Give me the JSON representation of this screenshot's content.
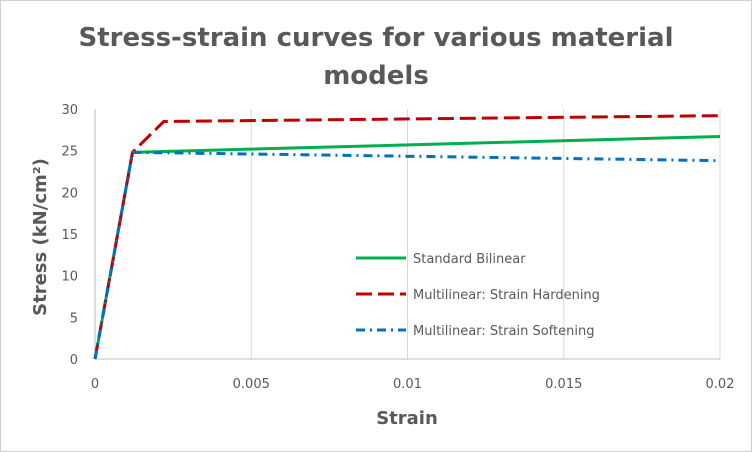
{
  "chart_data": {
    "type": "line",
    "title": "Stress-strain curves for various material models",
    "title_lines": [
      "Stress-strain curves for various material",
      "models"
    ],
    "xlabel": "Strain",
    "ylabel": "Stress (kN/cm²)",
    "xlim": [
      0,
      0.02
    ],
    "ylim": [
      0,
      30
    ],
    "xticks": [
      0,
      0.005,
      0.01,
      0.015,
      0.02
    ],
    "xtick_labels": [
      "0",
      "0.005",
      "0.01",
      "0.015",
      "0.02"
    ],
    "yticks": [
      0,
      5,
      10,
      15,
      20,
      25,
      30
    ],
    "ytick_labels": [
      "0",
      "5",
      "10",
      "15",
      "20",
      "25",
      "30"
    ],
    "grid": "vertical",
    "legend": "center-right",
    "series": [
      {
        "name": "Standard Bilinear",
        "color": "#00b050",
        "dash": "solid",
        "x": [
          0,
          0.0012,
          0.02
        ],
        "y": [
          0,
          24.8,
          26.7
        ]
      },
      {
        "name": "Multilinear: Strain Hardening",
        "color": "#c00000",
        "dash": "long-dash",
        "x": [
          0,
          0.0012,
          0.0022,
          0.02
        ],
        "y": [
          0,
          24.8,
          28.5,
          29.2
        ]
      },
      {
        "name": "Multilinear: Strain Softening",
        "color": "#0070c0",
        "dash": "dash-dot",
        "x": [
          0,
          0.0012,
          0.02
        ],
        "y": [
          0,
          24.8,
          23.8
        ]
      }
    ]
  }
}
